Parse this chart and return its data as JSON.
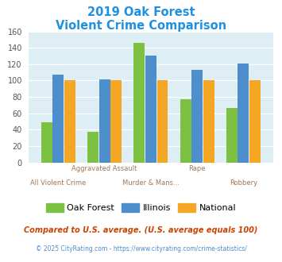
{
  "title_line1": "2019 Oak Forest",
  "title_line2": "Violent Crime Comparison",
  "categories": [
    "All Violent Crime",
    "Aggravated Assault",
    "Murder & Mans...",
    "Rape",
    "Robbery"
  ],
  "oak_forest": [
    49,
    37,
    146,
    77,
    67
  ],
  "illinois": [
    107,
    101,
    131,
    113,
    121
  ],
  "national": [
    100,
    100,
    100,
    100,
    100
  ],
  "color_oak": "#7cc142",
  "color_illinois": "#4d8fcc",
  "color_national": "#f5a623",
  "ylim": [
    0,
    160
  ],
  "yticks": [
    0,
    20,
    40,
    60,
    80,
    100,
    120,
    140,
    160
  ],
  "background_chart": "#ddeef5",
  "background_fig": "#ffffff",
  "title_color": "#2090e0",
  "xlabel_color": "#a07858",
  "footnote1": "Compared to U.S. average. (U.S. average equals 100)",
  "footnote2": "© 2025 CityRating.com - https://www.cityrating.com/crime-statistics/",
  "footnote1_color": "#cc4400",
  "footnote2_color": "#4d8fcc",
  "legend_labels": [
    "Oak Forest",
    "Illinois",
    "National"
  ]
}
